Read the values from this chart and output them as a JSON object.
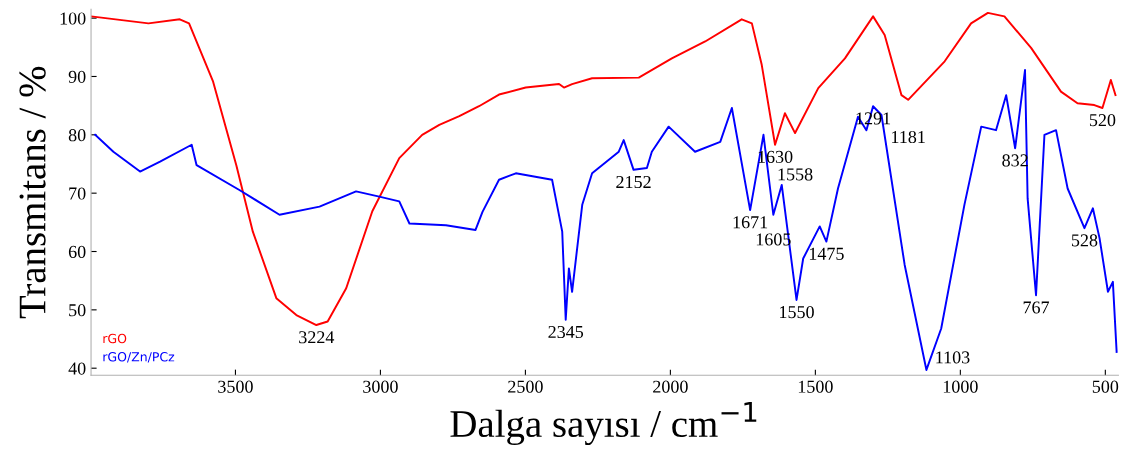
{
  "chart_data": {
    "type": "line",
    "xlabel": "Dalga sayısı / cm$^{−1}$",
    "ylabel": "Transmitans / %",
    "xlim": [
      3998,
      455
    ],
    "ylim": [
      38.8,
      101.5
    ],
    "xticks": [
      3500,
      3000,
      2500,
      2000,
      1500,
      1000,
      500
    ],
    "yticks": [
      40,
      50,
      60,
      70,
      80,
      90,
      100
    ],
    "legend": "bottom left",
    "grid": false,
    "series": [
      {
        "name": "rGO",
        "color": "#ff0000",
        "x": [
          3998,
          3800,
          3692,
          3660,
          3577,
          3497,
          3440,
          3359,
          3290,
          3221,
          3182,
          3118,
          3028,
          2935,
          2856,
          2797,
          2728,
          2660,
          2591,
          2499,
          2384,
          2367,
          2339,
          2270,
          2109,
          1995,
          1880,
          1754,
          1719,
          1685,
          1639,
          1605,
          1570,
          1490,
          1398,
          1301,
          1261,
          1203,
          1180,
          1054,
          963,
          905,
          848,
          756,
          653,
          596,
          538,
          510,
          481,
          465
        ],
        "values": [
          100.3,
          99.1,
          99.8,
          99.1,
          89.1,
          74.8,
          63.4,
          52.0,
          49.1,
          47.4,
          48.0,
          53.7,
          66.9,
          76.0,
          80.0,
          81.7,
          83.2,
          84.9,
          86.9,
          88.1,
          88.7,
          88.1,
          88.7,
          89.7,
          89.8,
          93.1,
          96.0,
          99.8,
          99.1,
          92.0,
          78.3,
          83.7,
          80.3,
          88.0,
          93.1,
          100.3,
          97.1,
          86.8,
          86.0,
          92.6,
          99.1,
          100.9,
          100.3,
          94.9,
          87.4,
          85.4,
          85.1,
          84.6,
          89.4,
          86.8
        ]
      },
      {
        "name": "rGO/Zn/PCz",
        "color": "#0000ff",
        "x": [
          3984,
          3921,
          3829,
          3760,
          3651,
          3634,
          3485,
          3348,
          3210,
          3084,
          3004,
          2935,
          2900,
          2774,
          2672,
          2648,
          2591,
          2533,
          2408,
          2373,
          2361,
          2350,
          2339,
          2304,
          2270,
          2178,
          2161,
          2127,
          2081,
          2064,
          2006,
          1915,
          1828,
          1788,
          1725,
          1679,
          1645,
          1616,
          1565,
          1542,
          1485,
          1462,
          1422,
          1353,
          1324,
          1301,
          1272,
          1192,
          1117,
          1066,
          986,
          928,
          877,
          842,
          811,
          777,
          768,
          739,
          710,
          670,
          630,
          572,
          543,
          520,
          491,
          474,
          461
        ],
        "values": [
          80.0,
          77.1,
          73.7,
          75.4,
          78.3,
          74.8,
          70.5,
          66.3,
          67.7,
          70.3,
          69.4,
          68.6,
          64.8,
          64.5,
          63.7,
          66.8,
          72.3,
          73.4,
          72.3,
          63.4,
          48.3,
          57.1,
          53.1,
          68.0,
          73.4,
          77.1,
          79.1,
          74.0,
          74.3,
          77.1,
          81.4,
          77.1,
          78.8,
          84.6,
          67.1,
          80.0,
          66.3,
          71.4,
          51.7,
          58.8,
          64.3,
          61.7,
          70.8,
          83.1,
          80.8,
          84.9,
          83.4,
          57.7,
          39.7,
          46.8,
          68.0,
          81.4,
          80.8,
          86.8,
          77.7,
          91.1,
          69.1,
          52.5,
          80.0,
          80.8,
          70.8,
          64.0,
          67.4,
          62.3,
          53.1,
          54.8,
          42.8
        ]
      }
    ],
    "annotations": [
      {
        "text": "3224",
        "x": 3221,
        "y": 47.4
      },
      {
        "text": "2345",
        "x": 2361,
        "y": 48.3
      },
      {
        "text": "2152",
        "x": 2127,
        "y": 74.0
      },
      {
        "text": "1671",
        "x": 1725,
        "y": 67.1
      },
      {
        "text": "1630",
        "x": 1639,
        "y": 78.3
      },
      {
        "text": "1605",
        "x": 1645,
        "y": 66.3
      },
      {
        "text": "1558",
        "x": 1570,
        "y": 80.3
      },
      {
        "text": "1550",
        "x": 1565,
        "y": 51.7
      },
      {
        "text": "1475",
        "x": 1462,
        "y": 61.7
      },
      {
        "text": "1291",
        "x": 1301,
        "y": 84.9
      },
      {
        "text": "1181",
        "x": 1180,
        "y": 86.0
      },
      {
        "text": "1103",
        "x": 1117,
        "y": 39.7
      },
      {
        "text": "832",
        "x": 811,
        "y": 77.7
      },
      {
        "text": "767",
        "x": 739,
        "y": 52.5
      },
      {
        "text": "528",
        "x": 572,
        "y": 64.0
      },
      {
        "text": "520",
        "x": 510,
        "y": 84.6
      }
    ]
  }
}
